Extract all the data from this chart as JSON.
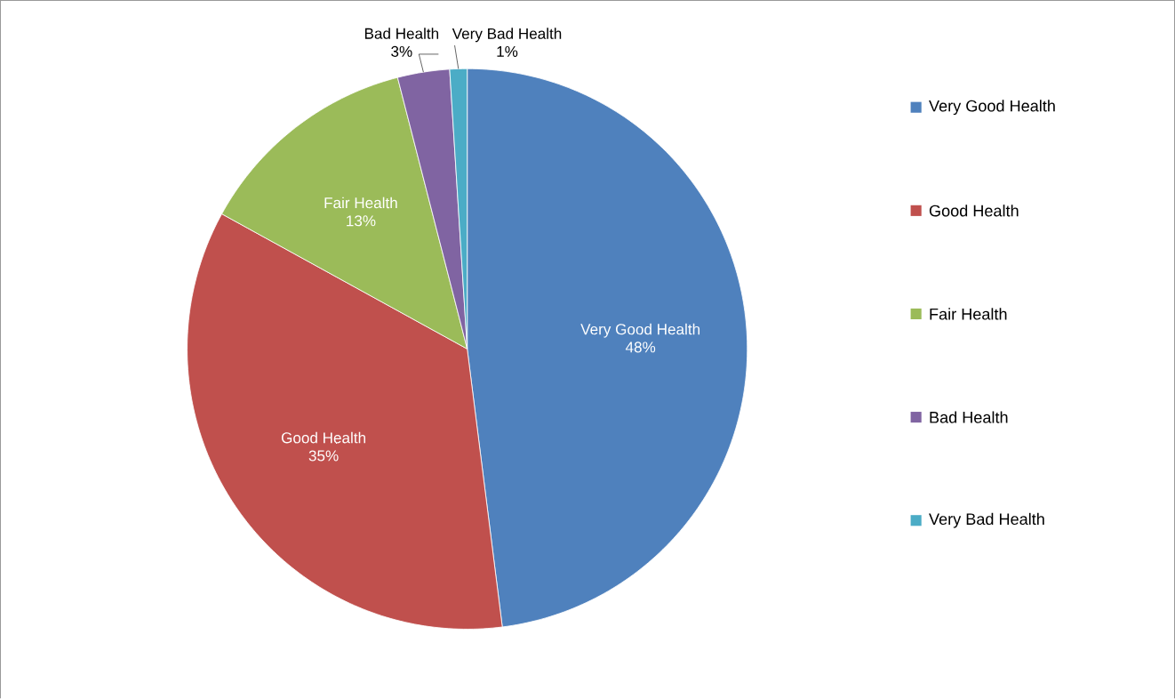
{
  "chart_data": {
    "type": "pie",
    "categories": [
      "Very Good Health",
      "Good Health",
      "Fair Health",
      "Bad Health",
      "Very Bad Health"
    ],
    "values": [
      48,
      35,
      13,
      3,
      1
    ],
    "colors": [
      "#4f81bd",
      "#c0504d",
      "#9bbb59",
      "#8064a2",
      "#4bacc6"
    ],
    "value_labels": [
      "48%",
      "35%",
      "13%",
      "3%",
      "1%"
    ],
    "legend": "right"
  }
}
